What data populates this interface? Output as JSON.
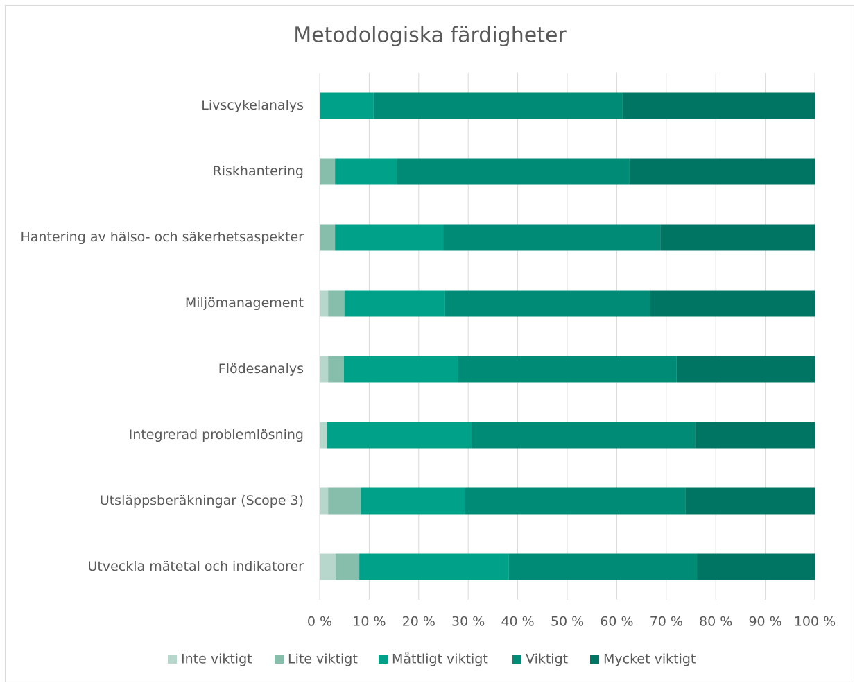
{
  "chart_data": {
    "type": "stacked-bar-horizontal",
    "title": "Metodologiska färdigheter",
    "categories": [
      "Livscykelanalys",
      "Riskhantering",
      "Hantering av hälso- och säkerhetsaspekter",
      "Miljömanagement",
      "Flödesanalys",
      "Integrerad problemlösning",
      "Utsläppsberäkningar (Scope 3)",
      "Utveckla mätetal och indikatorer"
    ],
    "series": [
      {
        "name": "Inte viktigt",
        "color": "#b7d7cd",
        "values": [
          0,
          0,
          0,
          1.7,
          1.7,
          1.5,
          1.7,
          3.2
        ]
      },
      {
        "name": "Lite viktigt",
        "color": "#86bdab",
        "values": [
          0,
          3.1,
          3.1,
          3.3,
          3.2,
          0,
          6.6,
          4.8
        ]
      },
      {
        "name": "Måttligt viktigt",
        "color": "#00a189",
        "values": [
          10.9,
          12.5,
          21.9,
          20.3,
          23.1,
          29.2,
          21.1,
          30.2
        ]
      },
      {
        "name": "Viktigt",
        "color": "#008b76",
        "values": [
          50.2,
          46.9,
          43.8,
          41.4,
          44.1,
          45.1,
          44.5,
          38.0
        ]
      },
      {
        "name": "Mycket viktigt",
        "color": "#007563",
        "values": [
          38.9,
          37.5,
          31.2,
          33.3,
          27.9,
          24.2,
          26.1,
          23.8
        ]
      }
    ],
    "xlim": [
      0,
      100
    ],
    "xticks": [
      {
        "value": 0,
        "label": "0 %"
      },
      {
        "value": 10,
        "label": "10 %"
      },
      {
        "value": 20,
        "label": "20 %"
      },
      {
        "value": 30,
        "label": "30 %"
      },
      {
        "value": 40,
        "label": "40 %"
      },
      {
        "value": 50,
        "label": "50 %"
      },
      {
        "value": 60,
        "label": "60 %"
      },
      {
        "value": 70,
        "label": "70 %"
      },
      {
        "value": 80,
        "label": "80 %"
      },
      {
        "value": 90,
        "label": "90 %"
      },
      {
        "value": 100,
        "label": "100 %"
      }
    ],
    "grid": true,
    "legend": "bottom"
  }
}
